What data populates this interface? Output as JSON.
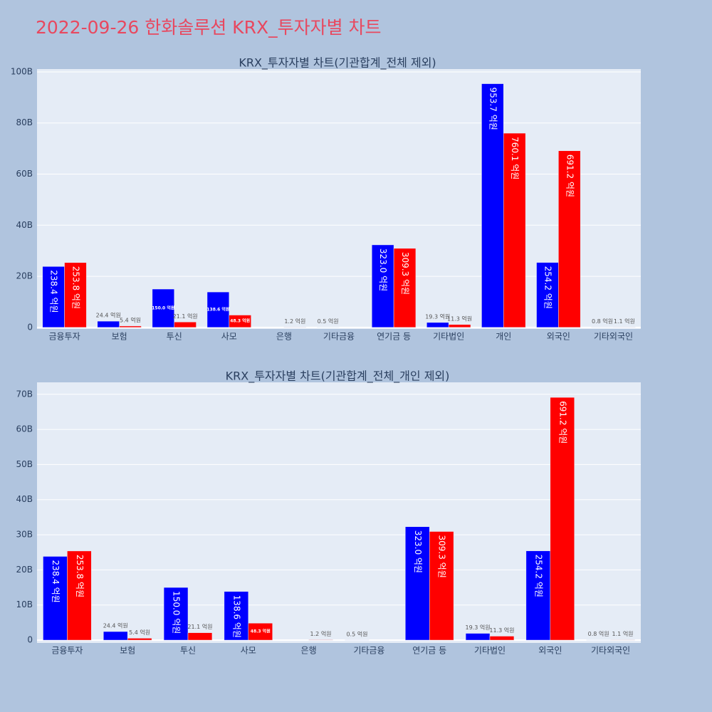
{
  "title": "2022-09-26 한화솔루션 KRX_투자자별 차트",
  "chart_data": [
    {
      "type": "bar",
      "title": "KRX_투자자별 차트(기관합계_전체 제외)",
      "categories": [
        "금융투자",
        "보험",
        "투신",
        "사모",
        "은행",
        "기타금융",
        "연기금 등",
        "기타법인",
        "개인",
        "외국인",
        "기타외국인"
      ],
      "series": [
        {
          "color": "#0000ff",
          "values": [
            23.84,
            2.44,
            15.0,
            13.86,
            null,
            0.05,
            32.3,
            1.93,
            95.37,
            25.42,
            0.08
          ],
          "value_labels": [
            "238.4 억원",
            "24.4 억원",
            "150.0 억원",
            "138.6 억원",
            null,
            "0.5 억원",
            "323.0 억원",
            "19.3 억원",
            "953.7 억원",
            "254.2 억원",
            "0.8 억원"
          ]
        },
        {
          "color": "#ff0000",
          "values": [
            25.38,
            0.54,
            2.11,
            4.83,
            0.12,
            null,
            30.93,
            1.13,
            76.01,
            69.12,
            0.11
          ],
          "value_labels": [
            "253.8 억원",
            "5.4 억원",
            "21.1 억원",
            "48.3 억원",
            "1.2 억원",
            null,
            "309.3 억원",
            "11.3 억원",
            "760.1 억원",
            "691.2 억원",
            "1.1 억원"
          ]
        }
      ],
      "ylim": [
        -0.6,
        101.1
      ],
      "yticks": [
        0,
        {
          "value": 20,
          "label": "20B"
        },
        {
          "value": 40,
          "label": "40B"
        },
        {
          "value": 60,
          "label": "60B"
        },
        {
          "value": 80,
          "label": "80B"
        },
        {
          "value": 100,
          "label": "100B"
        }
      ],
      "grid": true
    },
    {
      "type": "bar",
      "title": "KRX_투자자별 차트(기관합계_전체_개인 제외)",
      "categories": [
        "금융투자",
        "보험",
        "투신",
        "사모",
        "은행",
        "기타금융",
        "연기금 등",
        "기타법인",
        "외국인",
        "기타외국인"
      ],
      "series": [
        {
          "color": "#0000ff",
          "values": [
            23.84,
            2.44,
            15.0,
            13.86,
            null,
            0.05,
            32.3,
            1.93,
            25.42,
            0.08
          ],
          "value_labels": [
            "238.4 억원",
            "24.4 억원",
            "150.0 억원",
            "138.6 억원",
            null,
            "0.5 억원",
            "323.0 억원",
            "19.3 억원",
            "254.2 억원",
            "0.8 억원"
          ]
        },
        {
          "color": "#ff0000",
          "values": [
            25.38,
            0.54,
            2.11,
            4.83,
            0.12,
            null,
            30.93,
            1.13,
            69.12,
            0.11
          ],
          "value_labels": [
            "253.8 억원",
            "5.4 억원",
            "21.1 억원",
            "48.3 억원",
            "1.2 억원",
            null,
            "309.3 억원",
            "11.3 억원",
            "691.2 억원",
            "1.1 억원"
          ]
        }
      ],
      "ylim": [
        -0.8,
        73.4
      ],
      "yticks": [
        0,
        {
          "value": 10,
          "label": "10B"
        },
        {
          "value": 20,
          "label": "20B"
        },
        {
          "value": 30,
          "label": "30B"
        },
        {
          "value": 40,
          "label": "40B"
        },
        {
          "value": 50,
          "label": "50B"
        },
        {
          "value": 60,
          "label": "60B"
        },
        {
          "value": 70,
          "label": "70B"
        }
      ],
      "grid": true
    }
  ]
}
